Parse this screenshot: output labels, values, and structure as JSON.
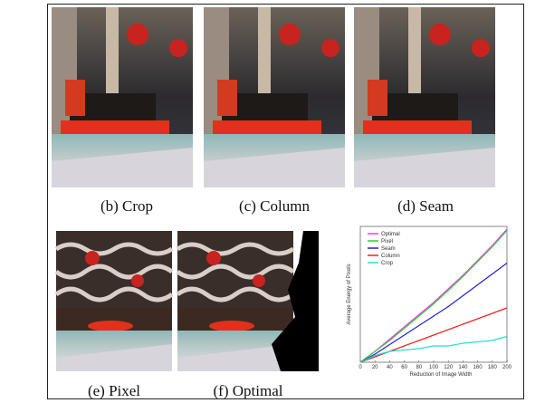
{
  "figure": {
    "captions": [
      "(b) Crop",
      "(c) Column",
      "(d) Seam",
      "(e) Pixel",
      "(f) Optimal"
    ]
  },
  "chart_data": {
    "type": "line",
    "x_label": "Reduction of Image Width",
    "y_label": "Average Energy of Pixels",
    "xlim": [
      0,
      200
    ],
    "xticks": [
      0,
      20,
      40,
      60,
      80,
      100,
      120,
      140,
      160,
      180,
      200
    ],
    "ylim": [
      0,
      1
    ],
    "legend": "top-left",
    "x": [
      0,
      20,
      40,
      60,
      80,
      100,
      120,
      140,
      160,
      180,
      200
    ],
    "series": [
      {
        "name": "Optimal",
        "color": "#ff33ff",
        "values": [
          0,
          0.08,
          0.17,
          0.26,
          0.35,
          0.44,
          0.54,
          0.64,
          0.75,
          0.86,
          0.98
        ]
      },
      {
        "name": "Pixel",
        "color": "#33cc33",
        "values": [
          0,
          0.08,
          0.16,
          0.25,
          0.34,
          0.43,
          0.53,
          0.63,
          0.74,
          0.85,
          0.97
        ]
      },
      {
        "name": "Seam",
        "color": "#2222cc",
        "values": [
          0,
          0.06,
          0.13,
          0.2,
          0.27,
          0.34,
          0.41,
          0.49,
          0.57,
          0.65,
          0.73
        ]
      },
      {
        "name": "Column",
        "color": "#ee2222",
        "values": [
          0,
          0.04,
          0.08,
          0.12,
          0.16,
          0.2,
          0.24,
          0.28,
          0.32,
          0.36,
          0.4
        ]
      },
      {
        "name": "Crop",
        "color": "#22dddd",
        "values": [
          0,
          0.05,
          0.08,
          0.09,
          0.1,
          0.12,
          0.12,
          0.14,
          0.15,
          0.16,
          0.19
        ]
      }
    ]
  }
}
